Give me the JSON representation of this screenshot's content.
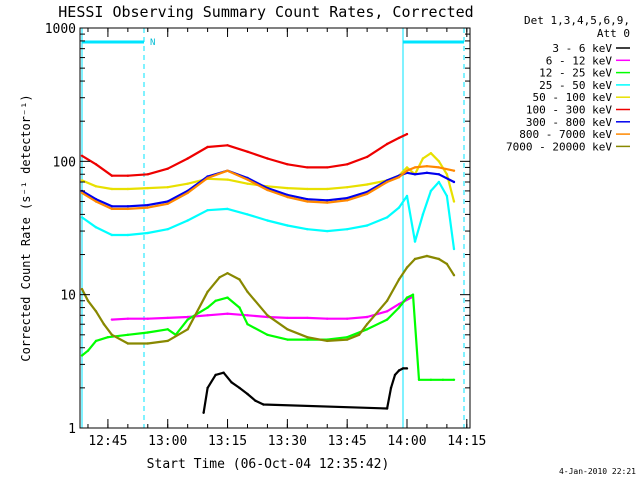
{
  "chart_data": {
    "type": "line",
    "title": "HESSI Observing Summary Count Rates, Corrected",
    "ylabel": "Corrected Count Rate (s⁻¹ detector⁻¹)",
    "xlabel": "Start Time (06-Oct-04 12:35:42)",
    "y_scale": "log",
    "ylim": [
      1,
      1000
    ],
    "xlim_minutes": [
      38.0,
      135.8
    ],
    "x_ticks": [
      {
        "label": "12:45",
        "m": 45
      },
      {
        "label": "13:00",
        "m": 60
      },
      {
        "label": "13:15",
        "m": 75
      },
      {
        "label": "13:30",
        "m": 90
      },
      {
        "label": "13:45",
        "m": 105
      },
      {
        "label": "14:00",
        "m": 120
      },
      {
        "label": "14:15",
        "m": 135
      }
    ],
    "y_ticks": [
      {
        "label": "1",
        "v": 1
      },
      {
        "label": "10",
        "v": 10
      },
      {
        "label": "100",
        "v": 100
      },
      {
        "label": "1000",
        "v": 1000
      }
    ],
    "legend": {
      "placement": "right",
      "header": [
        "Det 1,3,4,5,6,9,",
        "Att 0"
      ]
    },
    "annotations": {
      "night_marker": "N",
      "timestamp": "4-Jan-2010 22:21"
    },
    "series": [
      {
        "name": "3 - 6 keV",
        "color": "#000000",
        "x": [
          69,
          70,
          72,
          74,
          76,
          78,
          80,
          82,
          84,
          115,
          116,
          117,
          118,
          119,
          120
        ],
        "y": [
          1.3,
          2.0,
          2.5,
          2.6,
          2.2,
          2.0,
          1.8,
          1.6,
          1.5,
          1.4,
          2.0,
          2.5,
          2.7,
          2.8,
          2.8
        ]
      },
      {
        "name": "6 - 12 keV",
        "color": "#ff00ff",
        "x": [
          46,
          50,
          55,
          60,
          65,
          70,
          75,
          80,
          85,
          90,
          95,
          100,
          105,
          110,
          115,
          118,
          121
        ],
        "y": [
          6.5,
          6.6,
          6.6,
          6.7,
          6.8,
          7.0,
          7.2,
          7.0,
          6.8,
          6.7,
          6.7,
          6.6,
          6.6,
          6.8,
          7.5,
          8.5,
          9.5
        ]
      },
      {
        "name": "12 - 25 keV",
        "color": "#00ff00",
        "x": [
          38.5,
          40,
          42,
          45,
          50,
          55,
          60,
          62,
          65,
          70,
          72,
          75,
          78,
          80,
          85,
          90,
          95,
          100,
          105,
          110,
          115,
          118,
          120,
          121.5,
          123,
          126,
          129,
          131.8
        ],
        "y": [
          3.5,
          3.8,
          4.5,
          4.8,
          5.0,
          5.2,
          5.5,
          5.0,
          6.5,
          8.0,
          9.0,
          9.5,
          8.0,
          6.0,
          5.0,
          4.6,
          4.6,
          4.6,
          4.8,
          5.5,
          6.5,
          8.0,
          9.5,
          10.0,
          2.3,
          2.3,
          2.3,
          2.3
        ]
      },
      {
        "name": "25 - 50 keV",
        "color": "#00ffff",
        "x": [
          38.5,
          42,
          46,
          50,
          55,
          60,
          65,
          70,
          75,
          80,
          85,
          90,
          95,
          100,
          105,
          110,
          115,
          118,
          120,
          122,
          124,
          126,
          128,
          130,
          131.8
        ],
        "y": [
          38,
          32,
          28,
          28,
          29,
          31,
          36,
          43,
          44,
          40,
          36,
          33,
          31,
          30,
          31,
          33,
          38,
          45,
          55,
          25,
          40,
          60,
          70,
          55,
          22
        ]
      },
      {
        "name": "50 - 100 keV",
        "color": "#e8e000",
        "x": [
          38.5,
          42,
          46,
          50,
          55,
          60,
          65,
          70,
          75,
          80,
          85,
          90,
          95,
          100,
          105,
          110,
          115,
          118,
          120,
          122,
          124,
          126,
          128,
          130,
          131.8
        ],
        "y": [
          72,
          65,
          62,
          62,
          63,
          64,
          68,
          74,
          73,
          68,
          65,
          63,
          62,
          62,
          64,
          67,
          72,
          78,
          90,
          80,
          105,
          115,
          100,
          80,
          50
        ]
      },
      {
        "name": "100 - 300 keV",
        "color": "#ee0000",
        "x": [
          38.5,
          42,
          46,
          50,
          55,
          60,
          65,
          70,
          75,
          80,
          85,
          90,
          95,
          100,
          105,
          110,
          115,
          118,
          120
        ],
        "y": [
          110,
          95,
          78,
          78,
          80,
          88,
          105,
          128,
          132,
          118,
          105,
          95,
          90,
          90,
          95,
          108,
          135,
          150,
          160
        ]
      },
      {
        "name": "300 - 800 keV",
        "color": "#0000ee",
        "x": [
          38.5,
          42,
          46,
          50,
          55,
          60,
          65,
          70,
          75,
          80,
          85,
          90,
          95,
          100,
          105,
          110,
          115,
          118,
          120,
          122,
          125,
          128,
          131.8
        ],
        "y": [
          60,
          52,
          46,
          46,
          47,
          50,
          60,
          77,
          85,
          75,
          63,
          56,
          52,
          51,
          53,
          59,
          72,
          78,
          82,
          80,
          82,
          80,
          70
        ]
      },
      {
        "name": "800 - 7000 keV",
        "color": "#ff8800",
        "x": [
          38.5,
          42,
          46,
          50,
          55,
          60,
          65,
          70,
          75,
          80,
          85,
          90,
          95,
          100,
          105,
          110,
          115,
          118,
          120,
          122,
          125,
          128,
          131.8
        ],
        "y": [
          58,
          50,
          44,
          44,
          45,
          48,
          58,
          75,
          85,
          73,
          61,
          54,
          50,
          49,
          51,
          57,
          70,
          76,
          85,
          90,
          92,
          90,
          85
        ]
      },
      {
        "name": "7000 - 20000 keV",
        "color": "#888800",
        "x": [
          38.5,
          40,
          42,
          44,
          46,
          50,
          55,
          60,
          65,
          70,
          73,
          75,
          78,
          80,
          85,
          90,
          95,
          100,
          105,
          108,
          110,
          115,
          118,
          120,
          122,
          125,
          128,
          130,
          131.8
        ],
        "y": [
          11,
          9,
          7.5,
          6.0,
          5.0,
          4.3,
          4.3,
          4.5,
          5.5,
          10.5,
          13.5,
          14.5,
          13.0,
          10.5,
          7.0,
          5.5,
          4.8,
          4.5,
          4.6,
          5.0,
          6.0,
          9.0,
          13.0,
          16.0,
          18.5,
          19.5,
          18.5,
          17.0,
          14.0
        ]
      }
    ]
  }
}
